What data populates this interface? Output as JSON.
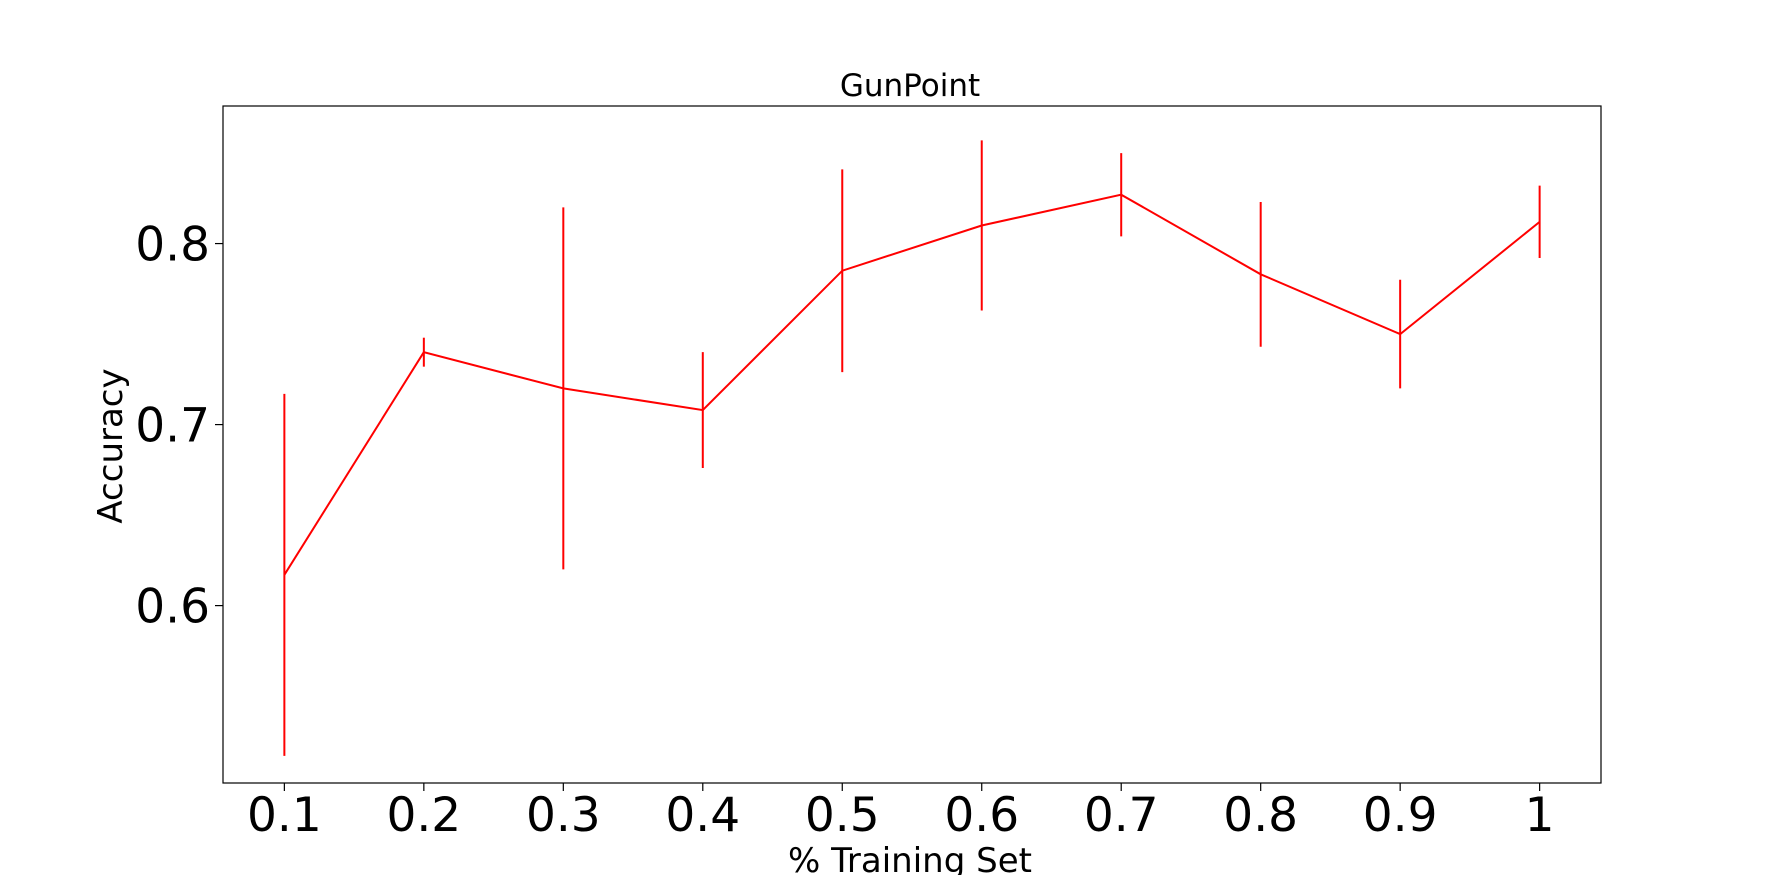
{
  "chart_data": {
    "type": "line",
    "title": "GunPoint",
    "xlabel": "% Training Set",
    "ylabel": "Accuracy",
    "x": [
      0.1,
      0.2,
      0.3,
      0.4,
      0.5,
      0.6,
      0.7,
      0.8,
      0.9,
      1
    ],
    "x_tick_labels": [
      "0.1",
      "0.2",
      "0.3",
      "0.4",
      "0.5",
      "0.6",
      "0.7",
      "0.8",
      "0.9",
      "1"
    ],
    "y_ticks": [
      0.6,
      0.7,
      0.8
    ],
    "y_tick_labels": [
      "0.6",
      "0.7",
      "0.8"
    ],
    "xlim": [
      0.056,
      1.044
    ],
    "ylim": [
      0.502,
      0.876
    ],
    "grid": false,
    "series": [
      {
        "color": "#ff0000",
        "values": [
          0.617,
          0.74,
          0.72,
          0.708,
          0.785,
          0.81,
          0.827,
          0.783,
          0.75,
          0.812
        ],
        "error": [
          0.1,
          0.008,
          0.1,
          0.032,
          0.056,
          0.047,
          0.023,
          0.04,
          0.03,
          0.02
        ]
      }
    ]
  }
}
